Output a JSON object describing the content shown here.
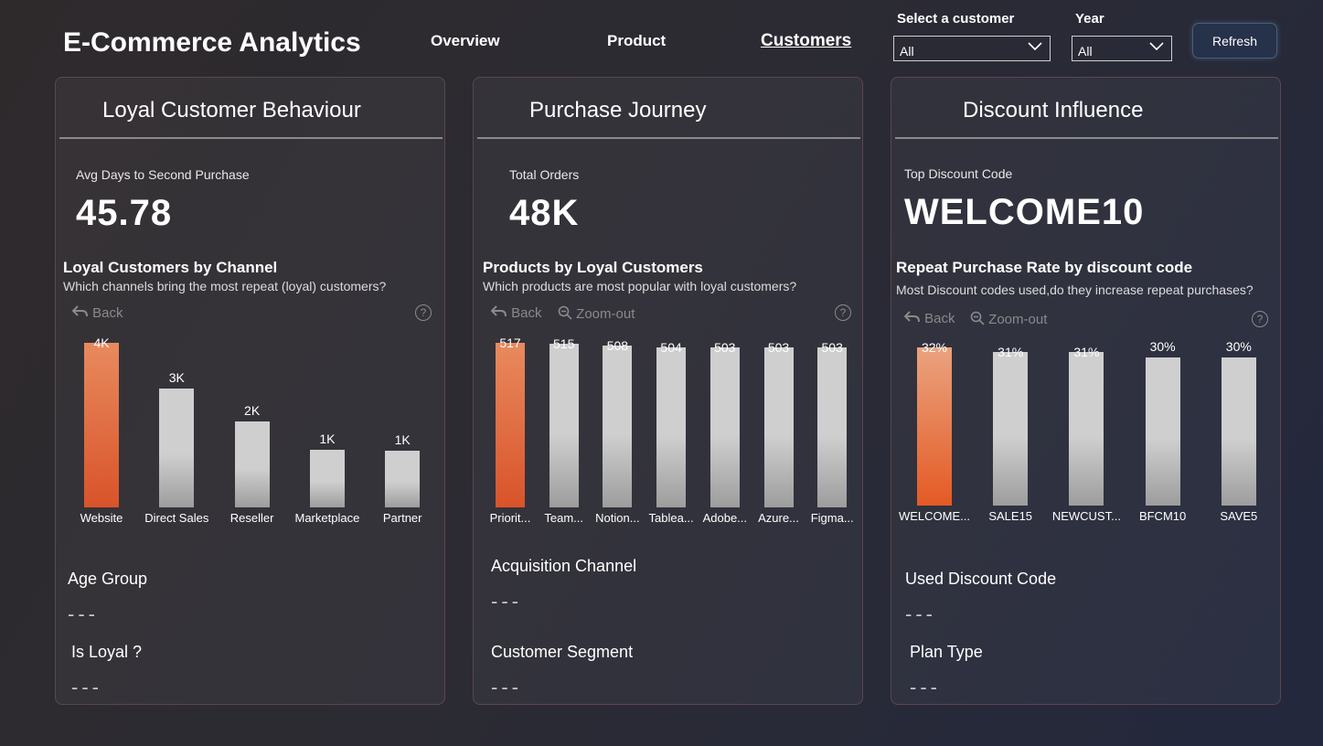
{
  "header": {
    "title": "E-Commerce Analytics",
    "nav": [
      "Overview",
      "Product",
      "Customers"
    ],
    "active_nav": "Customers",
    "customer_filter": {
      "label": "Select a customer",
      "value": "All"
    },
    "year_filter": {
      "label": "Year",
      "value": "All"
    },
    "refresh_label": "Refresh"
  },
  "toolbar": {
    "back": "Back",
    "zoom_out": "Zoom-out",
    "help": "?"
  },
  "cards": [
    {
      "title": "Loyal Customer Behaviour",
      "kpi_label": "Avg Days to Second Purchase",
      "kpi_value": "45.78",
      "chart_title": "Loyal Customers by Channel",
      "chart_subtitle": "Which channels bring the most repeat (loyal) customers?",
      "slicers": [
        {
          "label": "Age Group",
          "value": "---"
        },
        {
          "label": "Is Loyal ?",
          "value": "---"
        }
      ]
    },
    {
      "title": "Purchase Journey",
      "kpi_label": "Total Orders",
      "kpi_value": "48K",
      "chart_title": "Products by Loyal Customers",
      "chart_subtitle": "Which products are most popular with loyal customers?",
      "slicers": [
        {
          "label": "Acquisition Channel",
          "value": "---"
        },
        {
          "label": "Customer Segment",
          "value": "---"
        }
      ]
    },
    {
      "title": "Discount Influence",
      "kpi_label": "Top Discount Code",
      "kpi_value": "WELCOME10",
      "chart_title": "Repeat Purchase Rate by discount code",
      "chart_subtitle": "Most Discount codes used,do they increase repeat purchases?",
      "slicers": [
        {
          "label": "Used Discount Code",
          "value": "---"
        },
        {
          "label": "Plan Type",
          "value": "---"
        }
      ]
    }
  ],
  "chart_data": [
    {
      "type": "bar",
      "title": "Loyal Customers by Channel",
      "categories": [
        "Website",
        "Direct Sales",
        "Reseller",
        "Marketplace",
        "Partner"
      ],
      "values": [
        4000,
        2900,
        2100,
        1400,
        1380
      ],
      "data_labels": [
        "4K",
        "3K",
        "2K",
        "1K",
        "1K"
      ],
      "highlight": [
        0
      ],
      "ylim": [
        0,
        4000
      ]
    },
    {
      "type": "bar",
      "title": "Products by Loyal Customers",
      "categories": [
        "Priorit...",
        "Team...",
        "Notion...",
        "Tablea...",
        "Adobe...",
        "Azure...",
        "Figma..."
      ],
      "values": [
        517,
        515,
        508,
        504,
        503,
        503,
        503
      ],
      "data_labels": [
        "517",
        "515",
        "508",
        "504",
        "503",
        "503",
        "503"
      ],
      "highlight": [
        0
      ],
      "ylim": [
        0,
        517
      ]
    },
    {
      "type": "bar",
      "title": "Repeat Purchase Rate by discount code",
      "categories": [
        "WELCOME...",
        "SALE15",
        "NEWCUST...",
        "BFCM10",
        "SAVE5"
      ],
      "values": [
        32,
        31,
        31,
        30,
        30
      ],
      "data_labels": [
        "32%",
        "31%",
        "31%",
        "30%",
        "30%"
      ],
      "highlight": [
        0
      ],
      "ylim": [
        0,
        32
      ]
    }
  ],
  "colors": {
    "highlight": "#e4642e",
    "bar": "#cfcfcf",
    "accent_border": "#4b5d74"
  }
}
